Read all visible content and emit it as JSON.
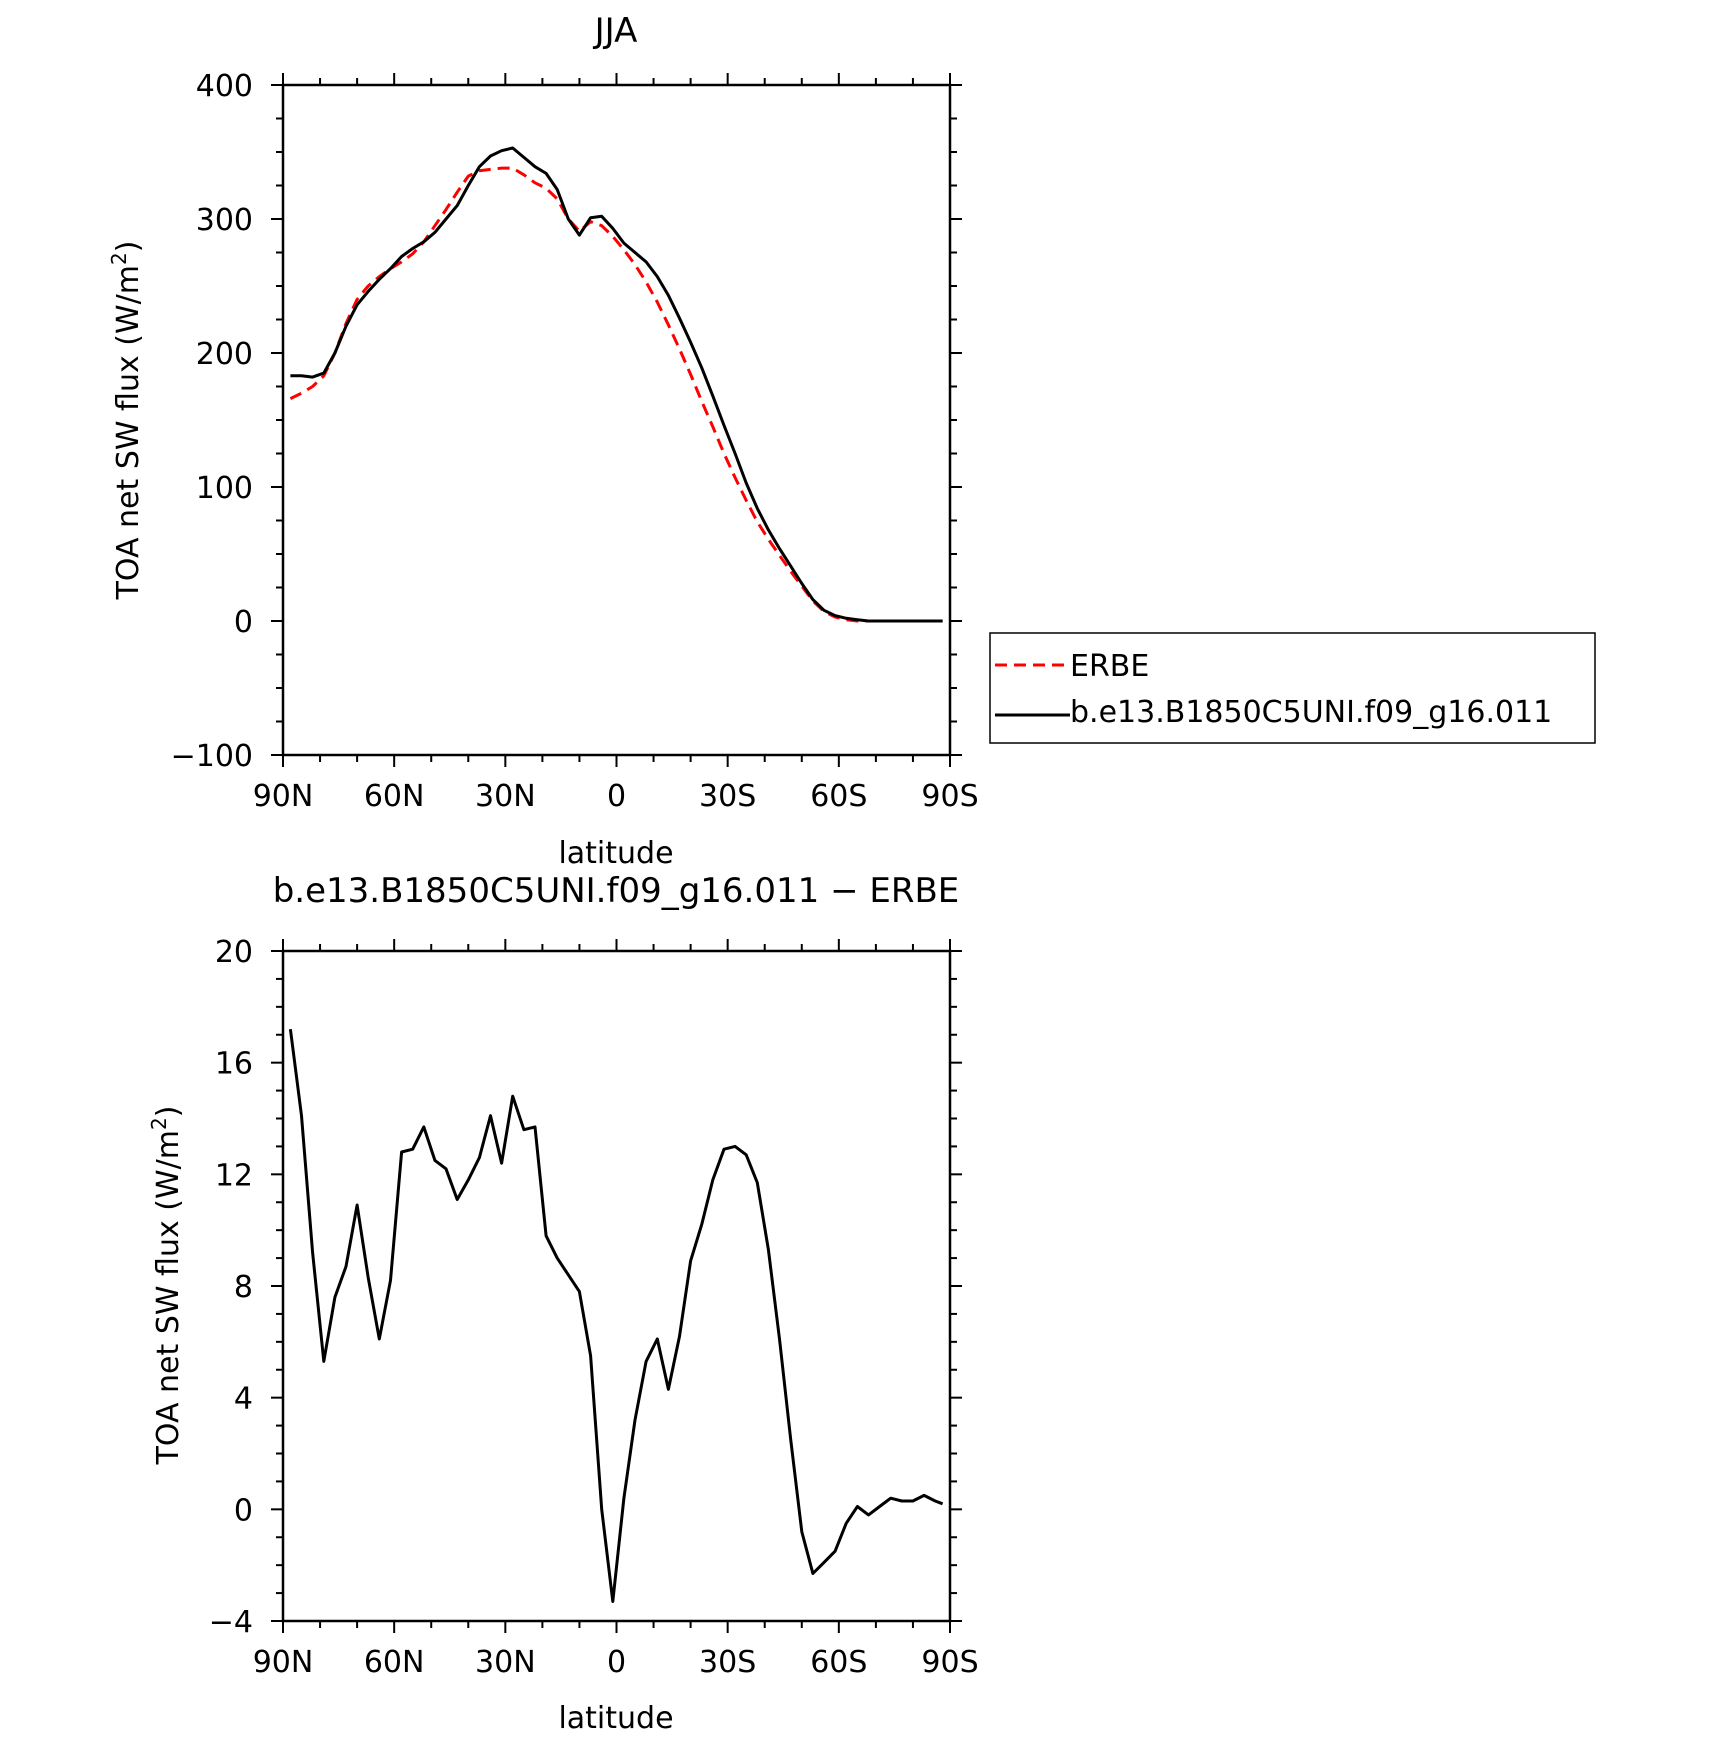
{
  "chart_data": [
    {
      "type": "line",
      "title": "JJA",
      "xlabel": "latitude",
      "ylabel": "TOA net SW flux (W/m",
      "ylabel_sup": "2",
      "ylabel_close": ")",
      "xlim": [
        90,
        -90
      ],
      "ylim": [
        -100,
        400
      ],
      "x_ticks": [
        90,
        60,
        30,
        0,
        -30,
        -60,
        -90
      ],
      "x_tick_labels": [
        "90N",
        "60N",
        "30N",
        "0",
        "30S",
        "60S",
        "90S"
      ],
      "y_ticks": [
        -100,
        0,
        100,
        200,
        300,
        400
      ],
      "y_tick_labels": [
        "−100",
        "0",
        "100",
        "200",
        "300",
        "400"
      ],
      "legend": {
        "placement": "right",
        "entries": [
          "ERBE",
          "b.e13.B1850C5UNI.f09_g16.011"
        ]
      },
      "series": [
        {
          "name": "ERBE",
          "color": "#ff0000",
          "style": "dashed",
          "x": [
            88,
            85,
            82,
            79,
            76,
            73,
            70,
            67,
            64,
            61,
            58,
            55,
            52,
            49,
            46,
            43,
            40,
            37,
            34,
            31,
            28,
            25,
            22,
            19,
            16,
            13,
            10,
            7,
            4,
            1,
            -2,
            -5,
            -8,
            -11,
            -14,
            -17,
            -20,
            -23,
            -26,
            -29,
            -32,
            -35,
            -38,
            -41,
            -44,
            -47,
            -50,
            -53,
            -56,
            -59,
            -62,
            -65,
            -68,
            -71,
            -74,
            -77,
            -80,
            -83,
            -86,
            -88
          ],
          "values": [
            166,
            170,
            175,
            183,
            200,
            222,
            240,
            250,
            257,
            263,
            268,
            274,
            283,
            295,
            307,
            320,
            332,
            336,
            337,
            338,
            338,
            333,
            327,
            323,
            315,
            300,
            291,
            298,
            295,
            287,
            277,
            266,
            253,
            238,
            221,
            203,
            184,
            164,
            145,
            125,
            107,
            90,
            74,
            61,
            49,
            37,
            26,
            15,
            7,
            3,
            1,
            0,
            0,
            0,
            0,
            0,
            0,
            0,
            0,
            0
          ]
        },
        {
          "name": "b.e13.B1850C5UNI.f09_g16.011",
          "color": "#000000",
          "style": "solid",
          "x": [
            88,
            85,
            82,
            79,
            76,
            73,
            70,
            67,
            64,
            61,
            58,
            55,
            52,
            49,
            46,
            43,
            40,
            37,
            34,
            31,
            28,
            25,
            22,
            19,
            16,
            13,
            10,
            7,
            4,
            1,
            -2,
            -5,
            -8,
            -11,
            -14,
            -17,
            -20,
            -23,
            -26,
            -29,
            -32,
            -35,
            -38,
            -41,
            -44,
            -47,
            -50,
            -53,
            -56,
            -59,
            -62,
            -65,
            -68,
            -71,
            -74,
            -77,
            -80,
            -83,
            -86,
            -88
          ],
          "values": [
            183,
            183,
            182,
            185,
            200,
            220,
            236,
            246,
            255,
            263,
            272,
            278,
            283,
            290,
            300,
            310,
            325,
            339,
            347,
            351,
            353,
            346,
            339,
            334,
            322,
            300,
            288,
            301,
            302,
            293,
            282,
            275,
            268,
            257,
            243,
            226,
            208,
            189,
            168,
            146,
            125,
            103,
            84,
            68,
            54,
            41,
            28,
            16,
            8,
            4,
            2,
            1,
            0,
            0,
            0,
            0,
            0,
            0,
            0,
            0
          ]
        }
      ]
    },
    {
      "type": "line",
      "title": "b.e13.B1850C5UNI.f09_g16.011 − ERBE",
      "xlabel": "latitude",
      "ylabel": "TOA net SW flux (W/m",
      "ylabel_sup": "2",
      "ylabel_close": ")",
      "xlim": [
        90,
        -90
      ],
      "ylim": [
        -4,
        20
      ],
      "x_ticks": [
        90,
        60,
        30,
        0,
        -30,
        -60,
        -90
      ],
      "x_tick_labels": [
        "90N",
        "60N",
        "30N",
        "0",
        "30S",
        "60S",
        "90S"
      ],
      "y_ticks": [
        -4,
        0,
        4,
        8,
        12,
        16,
        20
      ],
      "y_tick_labels": [
        "−4",
        "0",
        "4",
        "8",
        "12",
        "16",
        "20"
      ],
      "series": [
        {
          "color": "#000000",
          "style": "solid",
          "x": [
            88,
            85,
            82,
            79,
            76,
            73,
            70,
            67,
            64,
            61,
            58,
            55,
            52,
            49,
            46,
            43,
            40,
            37,
            34,
            31,
            28,
            25,
            22,
            19,
            16,
            13,
            10,
            7,
            4,
            1,
            -2,
            -5,
            -8,
            -11,
            -14,
            -17,
            -20,
            -23,
            -26,
            -29,
            -32,
            -35,
            -38,
            -41,
            -44,
            -47,
            -50,
            -53,
            -56,
            -59,
            -62,
            -65,
            -68,
            -71,
            -74,
            -77,
            -80,
            -83,
            -86,
            -88
          ],
          "values": [
            17.2,
            14.1,
            9.2,
            5.3,
            7.6,
            8.7,
            10.9,
            8.3,
            6.1,
            8.2,
            12.8,
            12.9,
            13.7,
            12.5,
            12.2,
            11.1,
            11.8,
            12.6,
            14.1,
            12.4,
            14.8,
            13.6,
            13.7,
            9.8,
            9.0,
            8.4,
            7.8,
            5.5,
            0,
            -3.3,
            0.4,
            3.2,
            5.3,
            6.1,
            4.3,
            6.2,
            8.9,
            10.2,
            11.8,
            12.9,
            13.0,
            12.7,
            11.7,
            9.3,
            6.1,
            2.5,
            -0.8,
            -2.3,
            -1.9,
            -1.5,
            -0.5,
            0.1,
            -0.2,
            0.1,
            0.4,
            0.3,
            0.3,
            0.5,
            0.3,
            0.2
          ]
        }
      ]
    }
  ]
}
